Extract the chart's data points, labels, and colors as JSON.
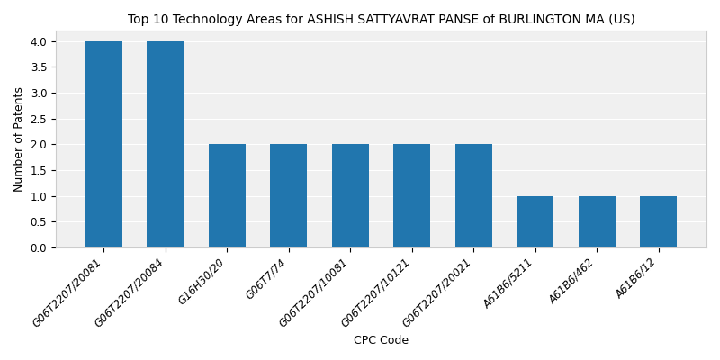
{
  "title": "Top 10 Technology Areas for ASHISH SATTYAVRAT PANSE of BURLINGTON MA (US)",
  "xlabel": "CPC Code",
  "ylabel": "Number of Patents",
  "categories": [
    "G06T2207/20081",
    "G06T2207/20084",
    "G16H30/20",
    "G06T7/74",
    "G06T2207/10081",
    "G06T2207/10121",
    "G06T2207/20021",
    "A61B6/5211",
    "A61B6/462",
    "A61B6/12"
  ],
  "values": [
    4,
    4,
    2,
    2,
    2,
    2,
    2,
    1,
    1,
    1
  ],
  "bar_color": "#2176ae",
  "ylim": [
    0,
    4.2
  ],
  "yticks": [
    0.0,
    0.5,
    1.0,
    1.5,
    2.0,
    2.5,
    3.0,
    3.5,
    4.0
  ],
  "figsize": [
    8.0,
    4.0
  ],
  "dpi": 100,
  "title_fontsize": 10,
  "label_fontsize": 9,
  "tick_fontsize": 8.5,
  "bar_width": 0.6
}
